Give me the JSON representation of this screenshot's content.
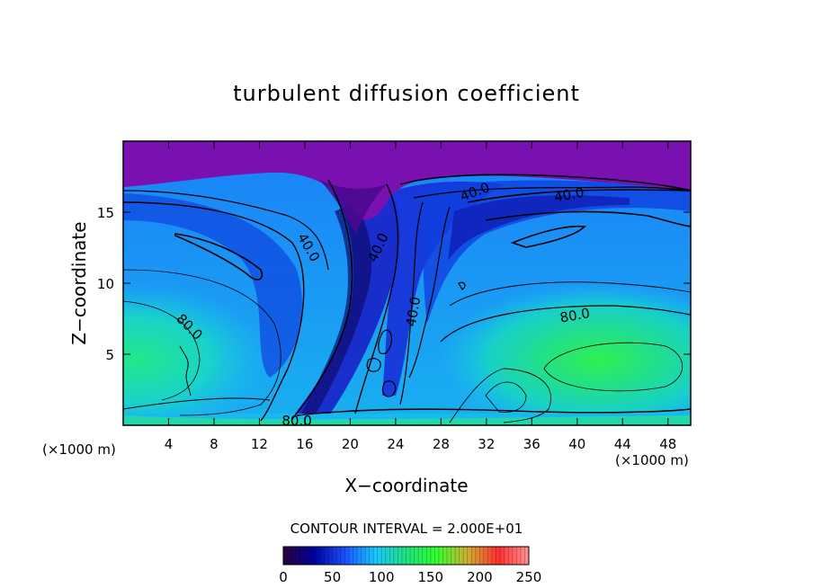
{
  "chart_data": {
    "type": "heatmap",
    "title": "turbulent diffusion coefficient",
    "xlabel": "X−coordinate",
    "ylabel": "Z−coordinate",
    "x_unit_left": "(×1000 m)",
    "x_unit_right": "(×1000 m)",
    "xlim": [
      0,
      50
    ],
    "ylim": [
      0,
      20
    ],
    "x_ticks": [
      4,
      8,
      12,
      16,
      20,
      24,
      28,
      32,
      36,
      40,
      44,
      48
    ],
    "y_ticks": [
      5,
      10,
      15
    ],
    "contour_interval_text": "CONTOUR INTERVAL = 2.000E+01",
    "contour_labels": [
      {
        "text": "40.0",
        "x": 16.3,
        "y": 12.5,
        "angle": 60
      },
      {
        "text": "40.0",
        "x": 22.5,
        "y": 12.5,
        "angle": -65
      },
      {
        "text": "40.0",
        "x": 25.6,
        "y": 8.0,
        "angle": -80
      },
      {
        "text": "40.0",
        "x": 31.0,
        "y": 16.4,
        "angle": -20
      },
      {
        "text": "40.0",
        "x": 39.3,
        "y": 16.2,
        "angle": -10
      },
      {
        "text": "80.0",
        "x": 5.8,
        "y": 6.9,
        "angle": 45
      },
      {
        "text": "80.0",
        "x": 39.8,
        "y": 7.7,
        "angle": -10
      },
      {
        "text": "80.0",
        "x": 15.3,
        "y": 0.3,
        "angle": 0
      }
    ],
    "colorbar": {
      "min": 0,
      "max": 250,
      "ticks": [
        0,
        50,
        100,
        150,
        200,
        250
      ],
      "colors": [
        "#2a003a",
        "#0000a0",
        "#1a50ff",
        "#18c8ff",
        "#20e080",
        "#30ff30",
        "#d0b030",
        "#ff3030",
        "#ff9090"
      ]
    },
    "field_colors": {
      "very_low": "#7a10b0",
      "low": "#1030d8",
      "mid_low": "#1a70f0",
      "mid": "#19c0f0",
      "mid_high": "#15e0c0",
      "high": "#20e880"
    }
  }
}
